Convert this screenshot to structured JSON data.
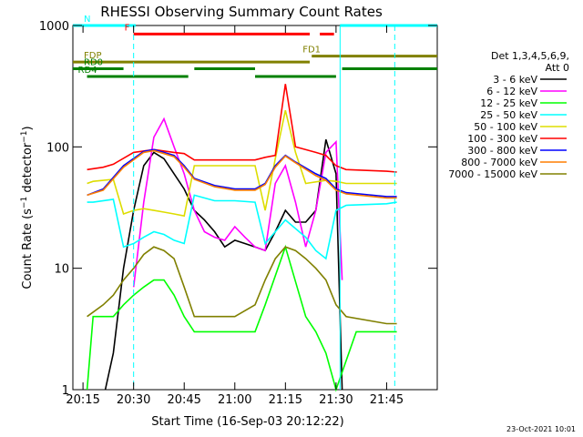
{
  "chart_data": {
    "type": "line",
    "title": "RHESSI Observing Summary Count Rates",
    "xlabel": "Start Time (16-Sep-03 20:12:22)",
    "ylabel": "Count Rate (s⁻¹ detector⁻¹)",
    "ylabel_main": "Count Rate (s",
    "ylabel_sup1": "−1",
    "ylabel_mid": " detector",
    "ylabel_sup2": "−1",
    "ylabel_end": ")",
    "y_scale": "log",
    "xlim_minutes": [
      20.2,
      22.0
    ],
    "ylim": [
      1,
      1000
    ],
    "x_ticks": [
      {
        "label": "20:15",
        "m": 20.25
      },
      {
        "label": "20:30",
        "m": 20.5
      },
      {
        "label": "20:45",
        "m": 20.75
      },
      {
        "label": "21:00",
        "m": 21.0
      },
      {
        "label": "21:15",
        "m": 21.25
      },
      {
        "label": "21:30",
        "m": 21.5
      },
      {
        "label": "21:45",
        "m": 21.75
      }
    ],
    "y_ticks": [
      {
        "label": "1",
        "v": 1
      },
      {
        "label": "10",
        "v": 10
      },
      {
        "label": "100",
        "v": 100
      },
      {
        "label": "1000",
        "v": 1000
      }
    ],
    "legend_header": [
      "Det 1,3,4,5,6,9,",
      "Att 0"
    ],
    "legend_position": "top-right",
    "series": [
      {
        "name": "3 - 6 keV",
        "color": "#000000",
        "points": [
          [
            20.36,
            1
          ],
          [
            20.4,
            2
          ],
          [
            20.45,
            10
          ],
          [
            20.5,
            30
          ],
          [
            20.55,
            70
          ],
          [
            20.6,
            90
          ],
          [
            20.65,
            80
          ],
          [
            20.7,
            60
          ],
          [
            20.75,
            45
          ],
          [
            20.8,
            30
          ],
          [
            20.85,
            25
          ],
          [
            20.9,
            20
          ],
          [
            20.95,
            15
          ],
          [
            21.0,
            17
          ],
          [
            21.05,
            16
          ],
          [
            21.1,
            15
          ],
          [
            21.15,
            14
          ],
          [
            21.2,
            20
          ],
          [
            21.25,
            30
          ],
          [
            21.3,
            24
          ],
          [
            21.35,
            24
          ],
          [
            21.4,
            30
          ],
          [
            21.45,
            115
          ],
          [
            21.5,
            60
          ],
          [
            21.53,
            1
          ]
        ]
      },
      {
        "name": "6 - 12 keV",
        "color": "#ff00ff",
        "points": [
          [
            20.5,
            7
          ],
          [
            20.55,
            35
          ],
          [
            20.6,
            120
          ],
          [
            20.65,
            170
          ],
          [
            20.7,
            100
          ],
          [
            20.75,
            60
          ],
          [
            20.8,
            30
          ],
          [
            20.85,
            20
          ],
          [
            20.9,
            18
          ],
          [
            20.95,
            17
          ],
          [
            21.0,
            22
          ],
          [
            21.05,
            18
          ],
          [
            21.1,
            15
          ],
          [
            21.15,
            14
          ],
          [
            21.2,
            50
          ],
          [
            21.25,
            70
          ],
          [
            21.3,
            35
          ],
          [
            21.35,
            15
          ],
          [
            21.4,
            30
          ],
          [
            21.45,
            90
          ],
          [
            21.5,
            110
          ],
          [
            21.53,
            8
          ]
        ]
      },
      {
        "name": "12 - 25 keV",
        "color": "#00ff00",
        "points": [
          [
            20.27,
            1
          ],
          [
            20.3,
            4
          ],
          [
            20.4,
            4
          ],
          [
            20.45,
            5
          ],
          [
            20.5,
            6
          ],
          [
            20.55,
            7
          ],
          [
            20.6,
            8
          ],
          [
            20.65,
            8
          ],
          [
            20.7,
            6
          ],
          [
            20.75,
            4
          ],
          [
            20.8,
            3
          ],
          [
            20.9,
            3
          ],
          [
            21.0,
            3
          ],
          [
            21.1,
            3
          ],
          [
            21.15,
            5
          ],
          [
            21.25,
            15
          ],
          [
            21.35,
            4
          ],
          [
            21.4,
            3
          ],
          [
            21.45,
            2
          ],
          [
            21.5,
            1
          ],
          [
            21.6,
            3
          ],
          [
            21.75,
            3
          ],
          [
            21.8,
            3
          ]
        ]
      },
      {
        "name": "25 - 50 keV",
        "color": "#00ffff",
        "points": [
          [
            20.27,
            35
          ],
          [
            20.3,
            35
          ],
          [
            20.4,
            37
          ],
          [
            20.45,
            15
          ],
          [
            20.5,
            16
          ],
          [
            20.55,
            18
          ],
          [
            20.6,
            20
          ],
          [
            20.65,
            19
          ],
          [
            20.7,
            17
          ],
          [
            20.75,
            16
          ],
          [
            20.8,
            40
          ],
          [
            20.9,
            36
          ],
          [
            21.0,
            36
          ],
          [
            21.1,
            35
          ],
          [
            21.15,
            16
          ],
          [
            21.25,
            25
          ],
          [
            21.35,
            18
          ],
          [
            21.4,
            14
          ],
          [
            21.45,
            12
          ],
          [
            21.5,
            30
          ],
          [
            21.55,
            33
          ],
          [
            21.75,
            34
          ],
          [
            21.8,
            35
          ]
        ]
      },
      {
        "name": "50 - 100 keV",
        "color": "#dddd00",
        "points": [
          [
            20.27,
            50
          ],
          [
            20.3,
            52
          ],
          [
            20.4,
            54
          ],
          [
            20.45,
            28
          ],
          [
            20.5,
            30
          ],
          [
            20.55,
            31
          ],
          [
            20.6,
            30
          ],
          [
            20.65,
            29
          ],
          [
            20.7,
            28
          ],
          [
            20.75,
            27
          ],
          [
            20.8,
            70
          ],
          [
            20.9,
            70
          ],
          [
            21.0,
            70
          ],
          [
            21.1,
            70
          ],
          [
            21.15,
            30
          ],
          [
            21.2,
            80
          ],
          [
            21.25,
            200
          ],
          [
            21.3,
            90
          ],
          [
            21.35,
            50
          ],
          [
            21.45,
            53
          ],
          [
            21.5,
            52
          ],
          [
            21.55,
            50
          ],
          [
            21.75,
            50
          ],
          [
            21.8,
            50
          ]
        ]
      },
      {
        "name": "100 - 300 keV",
        "color": "#ff0000",
        "points": [
          [
            20.27,
            65
          ],
          [
            20.35,
            68
          ],
          [
            20.4,
            72
          ],
          [
            20.5,
            90
          ],
          [
            20.6,
            95
          ],
          [
            20.7,
            90
          ],
          [
            20.75,
            88
          ],
          [
            20.8,
            78
          ],
          [
            20.9,
            78
          ],
          [
            21.0,
            78
          ],
          [
            21.1,
            78
          ],
          [
            21.15,
            82
          ],
          [
            21.2,
            85
          ],
          [
            21.25,
            330
          ],
          [
            21.3,
            100
          ],
          [
            21.4,
            90
          ],
          [
            21.45,
            85
          ],
          [
            21.5,
            70
          ],
          [
            21.55,
            65
          ],
          [
            21.75,
            63
          ],
          [
            21.8,
            62
          ]
        ]
      },
      {
        "name": "300 - 800 keV",
        "color": "#0000ff",
        "points": [
          [
            20.27,
            40
          ],
          [
            20.35,
            45
          ],
          [
            20.45,
            70
          ],
          [
            20.55,
            92
          ],
          [
            20.6,
            95
          ],
          [
            20.65,
            90
          ],
          [
            20.7,
            85
          ],
          [
            20.75,
            70
          ],
          [
            20.8,
            55
          ],
          [
            20.9,
            48
          ],
          [
            21.0,
            45
          ],
          [
            21.1,
            45
          ],
          [
            21.15,
            50
          ],
          [
            21.2,
            70
          ],
          [
            21.25,
            85
          ],
          [
            21.3,
            75
          ],
          [
            21.4,
            60
          ],
          [
            21.45,
            55
          ],
          [
            21.5,
            45
          ],
          [
            21.55,
            42
          ],
          [
            21.75,
            39
          ],
          [
            21.8,
            39
          ]
        ]
      },
      {
        "name": "800 - 7000 keV",
        "color": "#ff7f00",
        "points": [
          [
            20.27,
            40
          ],
          [
            20.35,
            44
          ],
          [
            20.45,
            68
          ],
          [
            20.55,
            90
          ],
          [
            20.6,
            93
          ],
          [
            20.65,
            88
          ],
          [
            20.7,
            83
          ],
          [
            20.75,
            68
          ],
          [
            20.8,
            54
          ],
          [
            20.9,
            47
          ],
          [
            21.0,
            44
          ],
          [
            21.1,
            44
          ],
          [
            21.15,
            49
          ],
          [
            21.2,
            68
          ],
          [
            21.25,
            84
          ],
          [
            21.3,
            74
          ],
          [
            21.4,
            58
          ],
          [
            21.45,
            53
          ],
          [
            21.5,
            44
          ],
          [
            21.55,
            41
          ],
          [
            21.75,
            38
          ],
          [
            21.8,
            38
          ]
        ]
      },
      {
        "name": "7000 - 15000 keV",
        "color": "#808000",
        "points": [
          [
            20.27,
            4
          ],
          [
            20.35,
            5
          ],
          [
            20.4,
            6
          ],
          [
            20.45,
            8
          ],
          [
            20.5,
            10
          ],
          [
            20.55,
            13
          ],
          [
            20.6,
            15
          ],
          [
            20.65,
            14
          ],
          [
            20.7,
            12
          ],
          [
            20.75,
            7
          ],
          [
            20.8,
            4
          ],
          [
            20.9,
            4
          ],
          [
            21.0,
            4
          ],
          [
            21.1,
            5
          ],
          [
            21.15,
            8
          ],
          [
            21.2,
            12
          ],
          [
            21.25,
            15
          ],
          [
            21.3,
            14
          ],
          [
            21.35,
            12
          ],
          [
            21.4,
            10
          ],
          [
            21.45,
            8
          ],
          [
            21.5,
            5
          ],
          [
            21.55,
            4
          ],
          [
            21.75,
            3.5
          ],
          [
            21.8,
            3.5
          ]
        ]
      }
    ],
    "flag_bars": [
      {
        "label": "N",
        "color": "#00ffff",
        "y_level": 1000,
        "segments": [
          [
            20.2,
            20.51
          ],
          [
            21.52,
            22.0
          ]
        ]
      },
      {
        "label": "F",
        "color": "#ff0000",
        "y_level": 850,
        "segments": [
          [
            20.5,
            21.37
          ],
          [
            21.42,
            21.49
          ]
        ]
      },
      {
        "label": "FD1",
        "color": "#808000",
        "y_level": 560,
        "segments": [
          [
            21.38,
            22.0
          ]
        ]
      },
      {
        "label": "FDP",
        "color": "#808000",
        "y_level": 500,
        "segments": [
          [
            20.2,
            21.37
          ]
        ]
      },
      {
        "label": "RD0",
        "color": "#008000",
        "y_level": 440,
        "segments": [
          [
            20.2,
            20.45
          ],
          [
            20.8,
            21.1
          ],
          [
            21.53,
            22.0
          ]
        ]
      },
      {
        "label": "RD4",
        "color": "#008000",
        "y_level": 380,
        "segments": [
          [
            20.27,
            20.77
          ],
          [
            21.1,
            21.5
          ]
        ]
      }
    ],
    "vlines": [
      {
        "m": 20.5,
        "color": "#00ffff",
        "style": "dashed"
      },
      {
        "m": 21.52,
        "color": "#00ffff",
        "style": "solid"
      },
      {
        "m": 21.79,
        "color": "#00ffff",
        "style": "dashed"
      }
    ],
    "grid": false,
    "footer": "23-Oct-2021 10:01"
  }
}
